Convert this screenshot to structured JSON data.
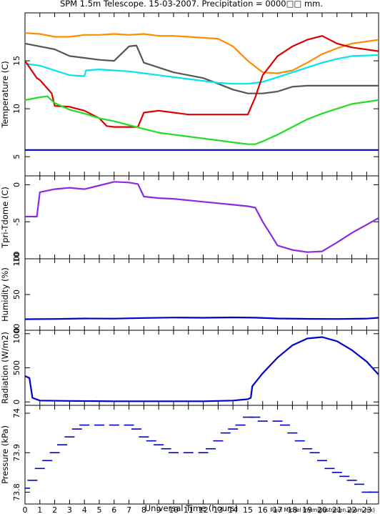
{
  "title": "SPM 1.5m Telescope. 15-03-2007. Precipitation = 0000□□ mm.",
  "xlabel": "Universal Time (hours)",
  "credit": "Raul Michel (rmm@astrosen.unam.mx)",
  "chart_data": [
    {
      "type": "line",
      "id": "temperature",
      "ylabel": "Temperature (C)",
      "xlim": [
        0,
        23.8
      ],
      "ylim": [
        3,
        20
      ],
      "yticks": [
        5,
        10,
        15
      ],
      "xticks": [
        0,
        1,
        2,
        3,
        4,
        5,
        6,
        7,
        8,
        9,
        10,
        11,
        12,
        13,
        14,
        15,
        16,
        17,
        18,
        19,
        20,
        21,
        22,
        23
      ],
      "series": [
        {
          "color": "#ff8c00",
          "x": [
            0,
            1,
            2,
            3,
            4,
            5,
            6,
            7,
            8,
            9,
            10,
            11,
            12,
            13,
            14,
            15,
            16,
            17,
            18,
            19,
            20,
            21,
            22,
            23.8
          ],
          "y": [
            17.9,
            17.8,
            17.5,
            17.5,
            17.7,
            17.7,
            17.8,
            17.7,
            17.8,
            17.6,
            17.6,
            17.5,
            17.4,
            17.3,
            16.5,
            15.0,
            13.8,
            13.7,
            14.0,
            14.8,
            15.7,
            16.3,
            16.8,
            17.2
          ]
        },
        {
          "color": "#555555",
          "x": [
            0,
            1,
            2,
            3,
            4,
            5,
            6,
            7,
            7.5,
            8,
            9,
            10,
            11,
            12,
            13,
            14,
            15,
            16,
            17,
            18,
            19,
            20,
            21,
            22,
            23.8
          ],
          "y": [
            16.8,
            16.5,
            16.2,
            15.5,
            15.3,
            15.1,
            15.0,
            16.5,
            16.6,
            14.8,
            14.3,
            13.8,
            13.5,
            13.2,
            12.6,
            12.0,
            11.6,
            11.6,
            11.8,
            12.3,
            12.4,
            12.4,
            12.4,
            12.4,
            12.4
          ]
        },
        {
          "color": "#00e5ee",
          "x": [
            0,
            1,
            2,
            3,
            4,
            4.1,
            5,
            6,
            7,
            8,
            9,
            10,
            11,
            12,
            13,
            14,
            15,
            16,
            17,
            18,
            19,
            20,
            21,
            22,
            23.8
          ],
          "y": [
            14.7,
            14.5,
            14.0,
            13.5,
            13.4,
            14.0,
            14.1,
            14.0,
            13.9,
            13.7,
            13.5,
            13.3,
            13.1,
            12.9,
            12.7,
            12.6,
            12.6,
            12.8,
            13.3,
            13.8,
            14.3,
            14.8,
            15.2,
            15.5,
            15.6
          ]
        },
        {
          "color": "#dd0000",
          "x": [
            0,
            0.8,
            1,
            1.8,
            2,
            3,
            4,
            5,
            5.5,
            6,
            7,
            7.6,
            8,
            9,
            10,
            11,
            12,
            13,
            14,
            15,
            15.5,
            16,
            17,
            18,
            19,
            20,
            21,
            22,
            23.8
          ],
          "y": [
            15.0,
            13.2,
            13.0,
            11.6,
            10.3,
            10.2,
            9.8,
            9.0,
            8.2,
            8.1,
            8.1,
            8.1,
            9.6,
            9.8,
            9.6,
            9.4,
            9.4,
            9.4,
            9.4,
            9.4,
            11.2,
            13.5,
            15.5,
            16.5,
            17.2,
            17.6,
            16.8,
            16.4,
            16.0
          ]
        },
        {
          "color": "#22dd22",
          "x": [
            0,
            1,
            1.5,
            2,
            3,
            4,
            5,
            6,
            7,
            8,
            9,
            10,
            11,
            12,
            13,
            14,
            15,
            15.5,
            16,
            17,
            18,
            19,
            20,
            21,
            22,
            23.8
          ],
          "y": [
            10.9,
            11.2,
            11.3,
            10.6,
            9.9,
            9.5,
            9.0,
            8.7,
            8.3,
            7.9,
            7.5,
            7.3,
            7.1,
            6.9,
            6.7,
            6.5,
            6.3,
            6.3,
            6.6,
            7.3,
            8.1,
            8.9,
            9.5,
            10.0,
            10.5,
            10.9
          ]
        },
        {
          "color": "#0000cc",
          "x": [
            0,
            23.8
          ],
          "y": [
            5.7,
            5.7
          ]
        }
      ]
    },
    {
      "type": "line",
      "id": "tpri-tdome",
      "ylabel": "Tpri-Tdome (C)",
      "xlim": [
        0,
        23.8
      ],
      "ylim": [
        -10,
        1.2
      ],
      "yticks": [
        -10,
        -5,
        0
      ],
      "series": [
        {
          "color": "#8a2be2",
          "x": [
            0,
            0.8,
            1,
            2,
            3,
            4,
            5,
            6,
            7,
            7.6,
            8,
            9,
            10,
            11,
            12,
            13,
            14,
            15,
            15.5,
            16,
            17,
            18,
            19,
            20,
            21,
            22,
            23.8
          ],
          "y": [
            -4.3,
            -4.3,
            -1.0,
            -0.6,
            -0.4,
            -0.6,
            -0.1,
            0.4,
            0.3,
            0.1,
            -1.6,
            -1.8,
            -1.9,
            -2.1,
            -2.3,
            -2.5,
            -2.7,
            -2.9,
            -3.1,
            -5.0,
            -8.2,
            -8.8,
            -9.1,
            -9.0,
            -7.8,
            -6.5,
            -4.5
          ]
        }
      ]
    },
    {
      "type": "line",
      "id": "humidity",
      "ylabel": "Humidity (%)",
      "xlim": [
        0,
        23.8
      ],
      "ylim": [
        0,
        100
      ],
      "yticks": [
        0,
        50,
        100
      ],
      "series": [
        {
          "color": "#0000cc",
          "x": [
            0,
            2,
            4,
            6,
            8,
            10,
            12,
            14,
            15.5,
            17,
            19,
            21,
            23,
            23.8
          ],
          "y": [
            15.5,
            15.8,
            16.5,
            16.3,
            17.2,
            17.8,
            17.5,
            18.0,
            17.6,
            16.5,
            16.0,
            15.8,
            16.3,
            17.5
          ]
        }
      ]
    },
    {
      "type": "line",
      "id": "radiation",
      "ylabel": "Radiation (W/m2)",
      "xlim": [
        0,
        23.8
      ],
      "ylim": [
        -50,
        1050
      ],
      "yticks": [
        0,
        500,
        1000
      ],
      "series": [
        {
          "color": "#0000cc",
          "x": [
            0,
            0.3,
            0.5,
            1,
            3,
            6,
            9,
            12,
            14,
            15,
            15.2,
            15.3,
            16,
            17,
            18,
            19,
            20,
            21,
            22,
            23,
            23.8
          ],
          "y": [
            380,
            350,
            60,
            20,
            15,
            10,
            10,
            10,
            20,
            40,
            60,
            230,
            420,
            650,
            830,
            930,
            950,
            890,
            760,
            590,
            400
          ]
        }
      ]
    },
    {
      "type": "scatter",
      "id": "pressure",
      "ylabel": "Pressure (kPa)",
      "xlim": [
        0,
        23.8
      ],
      "ylim": [
        73.77,
        74.02
      ],
      "yticks": [
        73.8,
        73.9,
        74
      ],
      "yticklabels": [
        "73.8",
        "73.9",
        "74"
      ],
      "series": [
        {
          "color": "#0000cc",
          "x": [
            0,
            0.5,
            1,
            1.5,
            2,
            2.5,
            3,
            3.5,
            4,
            5,
            6,
            7,
            7.5,
            8,
            8.5,
            9,
            9.5,
            10,
            11,
            12,
            12.5,
            13,
            13.5,
            14,
            14.5,
            15,
            15.5,
            16,
            17,
            17.5,
            18,
            18.5,
            19,
            19.5,
            20,
            20.5,
            21,
            21.5,
            22,
            22.5,
            23,
            23.5
          ],
          "y": [
            73.81,
            73.83,
            73.86,
            73.88,
            73.9,
            73.92,
            73.94,
            73.96,
            73.97,
            73.97,
            73.97,
            73.97,
            73.96,
            73.94,
            73.93,
            73.92,
            73.91,
            73.9,
            73.9,
            73.9,
            73.91,
            73.93,
            73.95,
            73.96,
            73.97,
            73.99,
            73.99,
            73.98,
            73.98,
            73.97,
            73.95,
            73.93,
            73.91,
            73.9,
            73.88,
            73.86,
            73.85,
            73.84,
            73.83,
            73.82,
            73.8,
            73.8
          ]
        }
      ]
    }
  ]
}
